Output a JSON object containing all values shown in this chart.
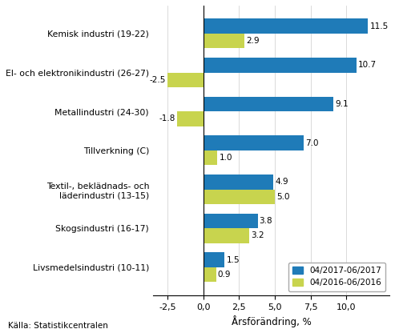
{
  "categories": [
    "Kemisk industri (19-22)",
    "El- och elektronikindustri (26-27)",
    "Metallindustri (24-30)",
    "Tillverkning (C)",
    "Textil-, beklädnads- och\nläderindustri (13-15)",
    "Skogsindustri (16-17)",
    "Livsmedelsindustri (10-11)"
  ],
  "values_2017": [
    11.5,
    10.7,
    9.1,
    7.0,
    4.9,
    3.8,
    1.5
  ],
  "values_2016": [
    2.9,
    -2.5,
    -1.8,
    1.0,
    5.0,
    3.2,
    0.9
  ],
  "color_2017": "#1F7BB8",
  "color_2016": "#C8D44E",
  "xlabel": "Årsförändring, %",
  "legend_2017": "04/2017-06/2017",
  "legend_2016": "04/2016-06/2016",
  "source": "Källa: Statistikcentralen",
  "xlim": [
    -3.5,
    13.0
  ],
  "xticks": [
    -2.5,
    0.0,
    2.5,
    5.0,
    7.5,
    10.0
  ],
  "bar_height": 0.38
}
